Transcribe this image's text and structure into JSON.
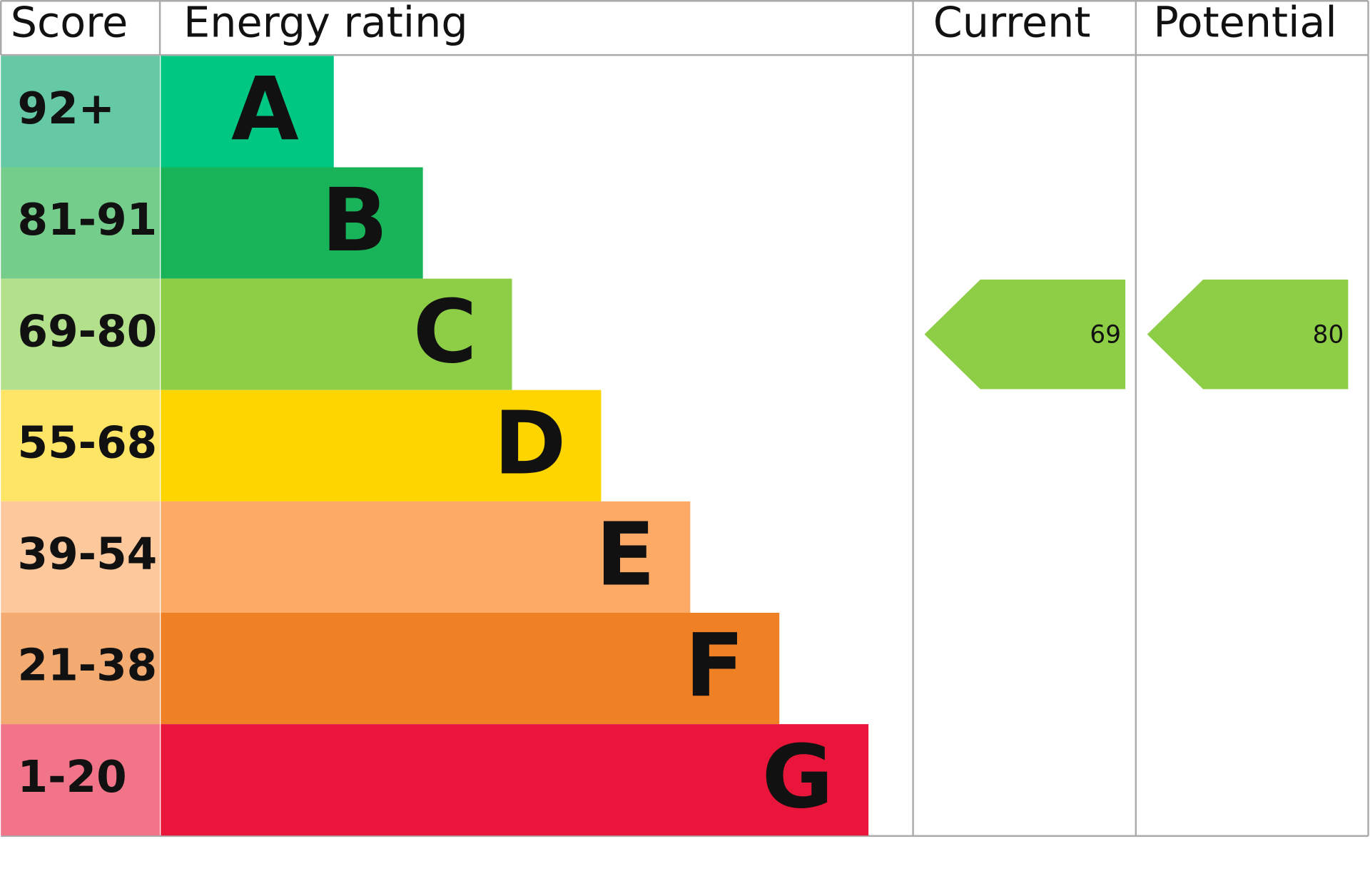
{
  "headers": {
    "score": "Score",
    "rating": "Energy rating",
    "current": "Current",
    "potential": "Potential"
  },
  "bands": [
    {
      "score": "92+",
      "rating": "A",
      "color": "#00c781",
      "score_color": "#66c9a5"
    },
    {
      "score": "81-91",
      "rating": "B",
      "color": "#19b459",
      "score_color": "#75cd8b"
    },
    {
      "score": "69-80",
      "rating": "C",
      "color": "#8dce46",
      "score_color": "#b3e08a"
    },
    {
      "score": "55-68",
      "rating": "D",
      "color": "#ffd500",
      "score_color": "#ffe566"
    },
    {
      "score": "39-54",
      "rating": "E",
      "color": "#fcaa65",
      "score_color": "#fdc89c"
    },
    {
      "score": "21-38",
      "rating": "F",
      "color": "#ef8023",
      "score_color": "#f4ab72"
    },
    {
      "score": "1-20",
      "rating": "G",
      "color": "#e9153b",
      "score_color": "#f17489"
    }
  ],
  "current": {
    "value": 69
  },
  "potential": {
    "value": 80
  }
}
